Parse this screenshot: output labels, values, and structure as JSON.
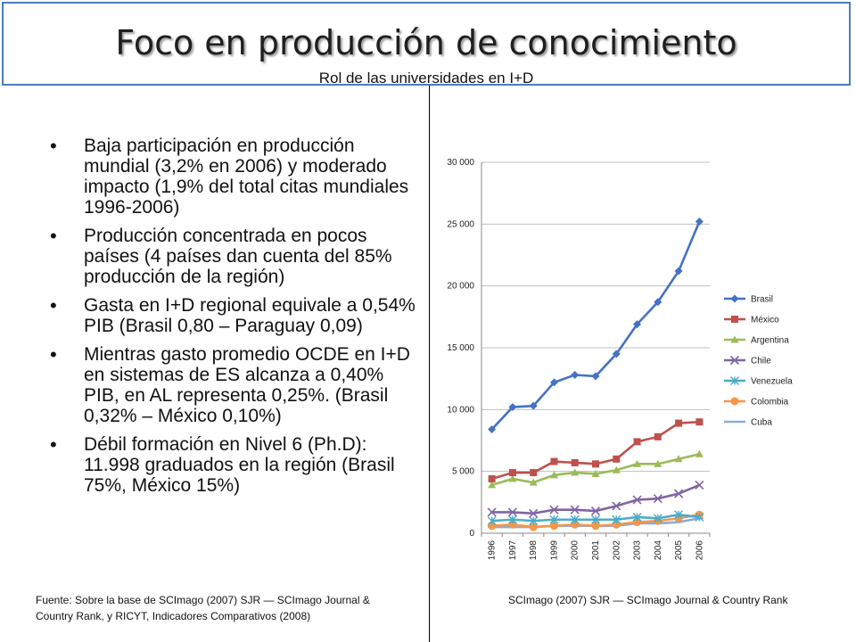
{
  "header": {
    "title": "Foco en producción de conocimiento",
    "subtitle": "Rol de las universidades en I+D"
  },
  "bullets": [
    "Baja participación en producción mundial (3,2% en 2006) y moderado impacto (1,9% del total citas mundiales 1996-2006)",
    "Producción concentrada en pocos países (4 países dan cuenta del 85% producción de la región)",
    "Gasta en I+D regional equivale a 0,54% PIB (Brasil 0,80 – Paraguay 0,09)",
    "Mientras gasto promedio OCDE en I+D en sistemas de ES alcanza a 0,40% PIB, en AL representa 0,25%. (Brasil 0,32% – México 0,10%)",
    "Débil formación en Nivel 6 (Ph.D): 11.998 graduados en la región (Brasil 75%, México 15%)"
  ],
  "footer": {
    "source_left": "Fuente: Sobre la base de SCImago (2007) SJR — SCImago Journal & Country Rank, y RICYT, Indicadores Comparativos (2008)",
    "source_right": "SCImago (2007) SJR — SCImago Journal & Country Rank"
  },
  "chart_data": {
    "type": "line",
    "title": "",
    "xlabel": "",
    "ylabel": "",
    "x": [
      "1996",
      "1997",
      "1998",
      "1999",
      "2000",
      "2001",
      "2002",
      "2003",
      "2004",
      "2005",
      "2006"
    ],
    "ylim": [
      0,
      30000
    ],
    "yticks": [
      0,
      5000,
      10000,
      15000,
      20000,
      25000,
      30000
    ],
    "ytick_labels": [
      "0",
      "5 000",
      "10 000",
      "15 000",
      "20 000",
      "25 000",
      "30 000"
    ],
    "grid": true,
    "legend_position": "right",
    "series": [
      {
        "name": "Brasil",
        "color": "#4472c4",
        "marker": "diamond",
        "values": [
          8400,
          10200,
          10300,
          12200,
          12800,
          12700,
          14500,
          16900,
          18700,
          21200,
          25200
        ]
      },
      {
        "name": "México",
        "color": "#c0504d",
        "marker": "square",
        "values": [
          4400,
          4900,
          4900,
          5800,
          5700,
          5600,
          6000,
          7400,
          7800,
          8900,
          9000
        ]
      },
      {
        "name": "Argentina",
        "color": "#9bbb59",
        "marker": "triangle",
        "values": [
          3900,
          4400,
          4100,
          4700,
          4900,
          4800,
          5100,
          5600,
          5600,
          6000,
          6400
        ]
      },
      {
        "name": "Chile",
        "color": "#8064a2",
        "marker": "x",
        "values": [
          1700,
          1700,
          1600,
          1900,
          1900,
          1800,
          2200,
          2700,
          2800,
          3200,
          3900
        ]
      },
      {
        "name": "Venezuela",
        "color": "#4bacc6",
        "marker": "star",
        "values": [
          1000,
          1100,
          1000,
          1100,
          1100,
          1100,
          1100,
          1300,
          1200,
          1500,
          1300
        ]
      },
      {
        "name": "Colombia",
        "color": "#f79646",
        "marker": "circle",
        "values": [
          600,
          700,
          500,
          600,
          700,
          600,
          700,
          900,
          1000,
          1200,
          1500
        ]
      },
      {
        "name": "Cuba",
        "color": "#8ea9db",
        "marker": "dash",
        "values": [
          500,
          500,
          500,
          600,
          600,
          600,
          600,
          800,
          800,
          900,
          1200
        ]
      }
    ]
  }
}
